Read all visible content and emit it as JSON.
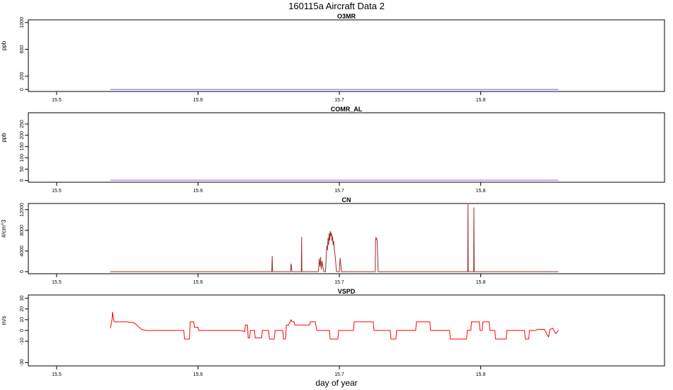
{
  "figure": {
    "title": "160115a   Aircraft Data 2",
    "xlabel": "day of year"
  },
  "chart_data": [
    {
      "type": "line",
      "title": "O3MR",
      "ylabel": "ppb",
      "xlim": [
        15.48,
        15.93
      ],
      "ylim": [
        -30,
        1040
      ],
      "xticks": [
        15.5,
        15.6,
        15.7,
        15.8
      ],
      "yticks": [
        0,
        200,
        600,
        1000
      ],
      "color": "#7f4fe0",
      "series": [
        {
          "x": [
            15.538,
            15.855
          ],
          "y": [
            1,
            1
          ]
        }
      ]
    },
    {
      "type": "line",
      "title": "COMR_AL",
      "ylabel": "ppb",
      "xlim": [
        15.48,
        15.93
      ],
      "ylim": [
        -8,
        300
      ],
      "xticks": [
        15.5,
        15.6,
        15.7,
        15.8
      ],
      "yticks": [
        0,
        50,
        100,
        150,
        200,
        250
      ],
      "color": "#b04fe0",
      "series": [
        {
          "x": [
            15.538,
            15.855
          ],
          "y": [
            1,
            1
          ]
        }
      ]
    },
    {
      "type": "line",
      "title": "CN",
      "ylabel": "#/cm^3",
      "xlim": [
        15.48,
        15.93
      ],
      "ylim": [
        -400,
        13200
      ],
      "xticks": [
        15.5,
        15.6,
        15.7,
        15.8
      ],
      "yticks": [
        0,
        4000,
        8000,
        12000
      ],
      "color": "#a52a2a",
      "series": [
        {
          "x": [
            15.538,
            15.6522,
            15.6525,
            15.6528,
            15.6655,
            15.6658,
            15.6661,
            15.6664,
            15.6731,
            15.6733,
            15.6735,
            15.6852,
            15.6858,
            15.6863,
            15.6868,
            15.6872,
            15.6878,
            15.6884,
            15.689,
            15.6902,
            15.6908,
            15.6912,
            15.6916,
            15.692,
            15.6924,
            15.6928,
            15.6932,
            15.6936,
            15.694,
            15.6944,
            15.6948,
            15.6952,
            15.6956,
            15.696,
            15.6964,
            15.6968,
            15.6972,
            15.6976,
            15.698,
            15.7,
            15.7005,
            15.701,
            15.7015,
            15.7254,
            15.7256,
            15.7258,
            15.726,
            15.7262,
            15.7264,
            15.7266,
            15.7268,
            15.727,
            15.7272,
            15.7274,
            15.7908,
            15.791,
            15.7912,
            15.795,
            15.7952,
            15.7954,
            15.855
          ],
          "y": [
            0,
            0,
            3000,
            0,
            0,
            1500,
            1200,
            0,
            0,
            6700,
            0,
            0,
            2500,
            1000,
            2800,
            500,
            2000,
            800,
            0,
            0,
            3500,
            5000,
            4200,
            6500,
            5200,
            7400,
            6100,
            7800,
            6900,
            7500,
            6000,
            6800,
            5200,
            5900,
            4400,
            3500,
            2600,
            1200,
            0,
            0,
            2600,
            1500,
            0,
            0,
            5800,
            6600,
            6300,
            6500,
            6400,
            6200,
            5800,
            4000,
            2200,
            0,
            0,
            13000,
            0,
            0,
            12400,
            0,
            0
          ]
        }
      ]
    },
    {
      "type": "line",
      "title": "VSPD",
      "ylabel": "m/s",
      "xlim": [
        15.48,
        15.93
      ],
      "ylim": [
        -33,
        33
      ],
      "xticks": [
        15.5,
        15.6,
        15.7,
        15.8
      ],
      "yticks": [
        -30,
        -10,
        0,
        10,
        20,
        30
      ],
      "color": "#ff0000",
      "series": [
        {
          "x": [
            15.538,
            15.5392,
            15.5395,
            15.54,
            15.5405,
            15.541,
            15.55,
            15.555,
            15.5575,
            15.56,
            15.563,
            15.57,
            15.58,
            15.59,
            15.5905,
            15.594,
            15.5945,
            15.597,
            15.5975,
            15.6,
            15.6005,
            15.61,
            15.62,
            15.63,
            15.633,
            15.6335,
            15.635,
            15.6355,
            15.6365,
            15.637,
            15.64,
            15.6405,
            15.645,
            15.6455,
            15.65,
            15.6505,
            15.654,
            15.6545,
            15.66,
            15.6605,
            15.662,
            15.6625,
            15.664,
            15.666,
            15.6665,
            15.668,
            15.6685,
            15.679,
            15.6795,
            15.683,
            15.684,
            15.693,
            15.6935,
            15.699,
            15.6995,
            15.71,
            15.7105,
            15.724,
            15.7245,
            15.7265,
            15.727,
            15.736,
            15.7365,
            15.74,
            15.7405,
            15.754,
            15.7545,
            15.764,
            15.7645,
            15.778,
            15.7785,
            15.79,
            15.7905,
            15.793,
            15.7935,
            15.799,
            15.7995,
            15.801,
            15.8015,
            15.806,
            15.8065,
            15.81,
            15.8105,
            15.818,
            15.8185,
            15.831,
            15.8315,
            15.834,
            15.8345,
            15.838,
            15.839,
            15.84,
            15.845,
            15.847,
            15.848,
            15.849,
            15.851,
            15.853,
            15.855
          ],
          "y": [
            2,
            10,
            17,
            13,
            9,
            8,
            8,
            7,
            4,
            1,
            0,
            0,
            0,
            0,
            -8,
            -8,
            8,
            8,
            3,
            3,
            0,
            0,
            0,
            0,
            -1,
            5,
            5,
            -7,
            -7,
            0,
            0,
            -7,
            -7,
            0,
            0,
            -8,
            -8,
            0,
            0,
            -8,
            -8,
            5,
            5,
            10,
            8,
            8,
            5,
            5,
            8,
            8,
            0,
            0,
            -8,
            -8,
            0,
            0,
            8,
            8,
            0,
            0,
            0,
            0,
            -8,
            -8,
            0,
            0,
            8,
            8,
            0,
            0,
            -8,
            -8,
            0,
            0,
            8,
            8,
            0,
            0,
            8,
            8,
            0,
            0,
            -8,
            -8,
            0,
            0,
            -8,
            -8,
            0,
            0,
            0,
            1,
            1,
            -4,
            -6,
            1,
            2,
            -3,
            0
          ]
        }
      ]
    }
  ]
}
